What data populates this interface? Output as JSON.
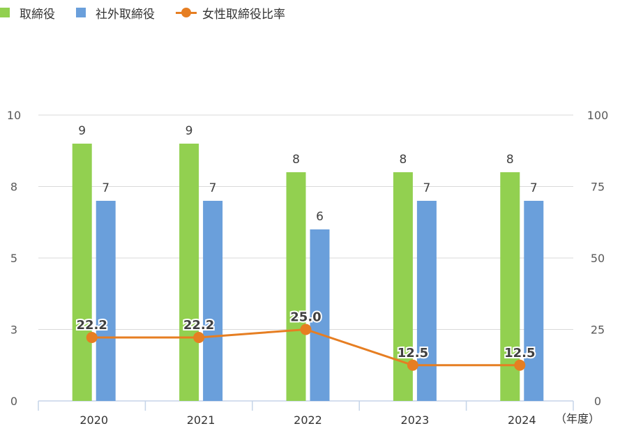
{
  "chart_data": {
    "type": "bar",
    "categories": [
      "2020",
      "2021",
      "2022",
      "2023",
      "2024"
    ],
    "series": [
      {
        "name": "取締役",
        "type": "bar",
        "axis": "left",
        "color": "#92d050",
        "values": [
          9,
          9,
          8,
          8,
          8
        ]
      },
      {
        "name": "社外取締役",
        "type": "bar",
        "axis": "left",
        "color": "#6a9fdb",
        "values": [
          7,
          7,
          6,
          7,
          7
        ]
      },
      {
        "name": "女性取締役比率",
        "type": "line",
        "axis": "right",
        "color": "#e67e22",
        "values": [
          22.2,
          22.2,
          25.0,
          12.5,
          12.5
        ]
      }
    ],
    "y_left": {
      "min": 0,
      "max": 10,
      "ticks": [
        "0",
        "3",
        "5",
        "8",
        "10"
      ]
    },
    "y_right": {
      "min": 0,
      "max": 100,
      "ticks": [
        "0",
        "25",
        "50",
        "75",
        "100"
      ]
    },
    "bar_labels": [
      [
        "9",
        "9",
        "8",
        "8",
        "8"
      ],
      [
        "7",
        "7",
        "6",
        "7",
        "7"
      ]
    ],
    "line_labels": [
      "22.2",
      "22.2",
      "25.0",
      "12.5",
      "12.5"
    ],
    "x_unit": "（年度）",
    "legend_position": "top-left",
    "grid": true
  }
}
